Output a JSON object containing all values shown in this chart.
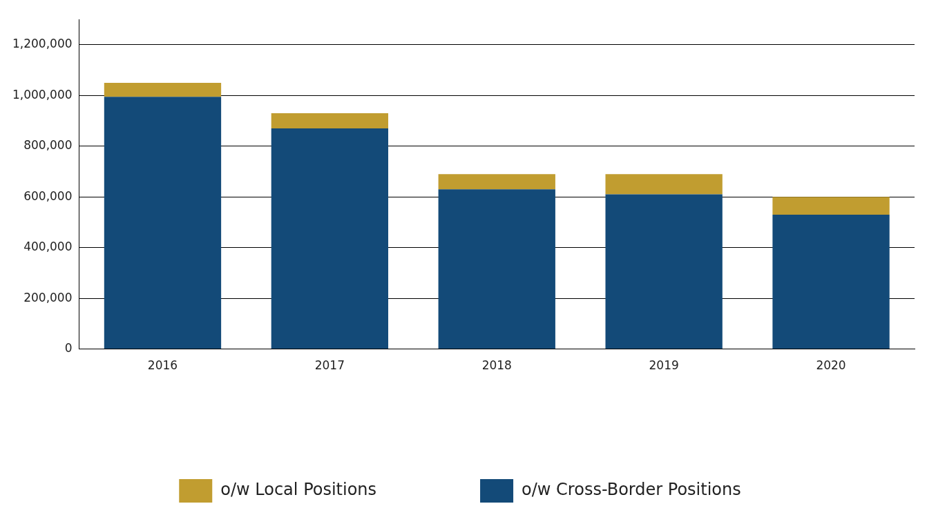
{
  "chart_data": {
    "type": "bar",
    "stacked": true,
    "categories": [
      "2016",
      "2017",
      "2018",
      "2019",
      "2020"
    ],
    "series": [
      {
        "name": "o/w Cross-Border Positions",
        "color": "#134a78",
        "values": [
          995000,
          870000,
          630000,
          610000,
          530000
        ]
      },
      {
        "name": "o/w Local Positions",
        "color": "#c19d30",
        "values": [
          55000,
          60000,
          60000,
          80000,
          70000
        ]
      }
    ],
    "ylim": [
      0,
      1300000
    ],
    "yticks": [
      0,
      {
        "value": 200000,
        "label": "200,000"
      },
      {
        "value": 400000,
        "label": "400,000"
      },
      {
        "value": 600000,
        "label": "600,000"
      },
      {
        "value": 800000,
        "label": "800,000"
      },
      {
        "value": 1000000,
        "label": "1,000,000"
      },
      {
        "value": 1200000,
        "label": "1,200,000"
      }
    ],
    "grid": "y",
    "legend": "bottom"
  }
}
